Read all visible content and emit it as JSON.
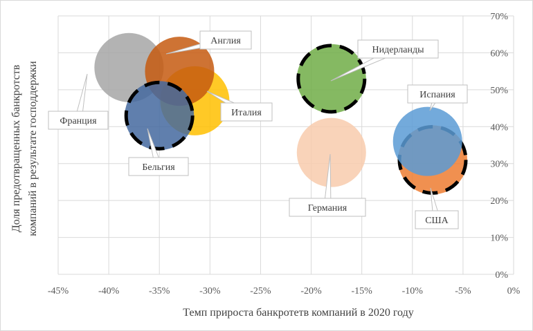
{
  "chart_data": {
    "type": "bubble",
    "xlabel": "Темп прироста банкротетв компаний в 2020 году",
    "ylabel_lines": [
      "Доля предотвращенных банкротств",
      "компаний в результате господдержки"
    ],
    "xlim": [
      -45,
      0
    ],
    "ylim": [
      0,
      70
    ],
    "x_ticks": [
      -45,
      -40,
      -35,
      -30,
      -25,
      -20,
      -15,
      -10,
      -5,
      0
    ],
    "x_tick_labels": [
      "-45%",
      "-40%",
      "-35%",
      "-30%",
      "-25%",
      "-20%",
      "-15%",
      "-10%",
      "-5%",
      "0%"
    ],
    "y_ticks": [
      0,
      10,
      20,
      30,
      40,
      50,
      60,
      70
    ],
    "y_tick_labels": [
      "0%",
      "10%",
      "20%",
      "30%",
      "40%",
      "50%",
      "60%",
      "70%"
    ],
    "grid": true,
    "series": [
      {
        "name": "Франция",
        "x": -38,
        "y": 56,
        "color": "#a6a6a6",
        "dashed": false
      },
      {
        "name": "Италия",
        "x": -31.5,
        "y": 47,
        "color": "#ffc000",
        "dashed": false
      },
      {
        "name": "Англия",
        "x": -33,
        "y": 55,
        "color": "#c55a11",
        "dashed": false
      },
      {
        "name": "Бельгия",
        "x": -35,
        "y": 43,
        "color": "#44699f",
        "dashed": true
      },
      {
        "name": "Нидерланды",
        "x": -18,
        "y": 53,
        "color": "#70ad47",
        "dashed": true
      },
      {
        "name": "Германия",
        "x": -18,
        "y": 33,
        "color": "#f8cbad",
        "dashed": false
      },
      {
        "name": "США",
        "x": -8,
        "y": 31,
        "color": "#ed7d31",
        "dashed": true
      },
      {
        "name": "Испания",
        "x": -8.5,
        "y": 36,
        "color": "#5b9bd5",
        "dashed": false
      }
    ]
  }
}
